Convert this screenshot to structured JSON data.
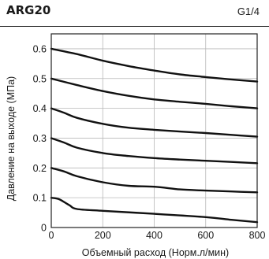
{
  "header": {
    "model": "ARG20",
    "port": "G1/4"
  },
  "chart_data": {
    "type": "line",
    "xlabel": "Объемный расход (Норм.л/мин)",
    "ylabel": "Давление на выходе (МПа)",
    "xlim": [
      0,
      800
    ],
    "ylim": [
      0,
      0.65
    ],
    "x_ticks": [
      "0",
      "200",
      "400",
      "600",
      "800"
    ],
    "y_ticks": [
      "0",
      "0.1",
      "0.2",
      "0.3",
      "0.4",
      "0.5",
      "0.6"
    ],
    "grid": true,
    "series": [
      {
        "points": [
          [
            0,
            0.6
          ],
          [
            100,
            0.582
          ],
          [
            200,
            0.56
          ],
          [
            300,
            0.542
          ],
          [
            400,
            0.527
          ],
          [
            500,
            0.514
          ],
          [
            600,
            0.505
          ],
          [
            700,
            0.497
          ],
          [
            800,
            0.49
          ]
        ]
      },
      {
        "points": [
          [
            0,
            0.5
          ],
          [
            100,
            0.478
          ],
          [
            200,
            0.458
          ],
          [
            300,
            0.442
          ],
          [
            400,
            0.43
          ],
          [
            500,
            0.422
          ],
          [
            600,
            0.415
          ],
          [
            700,
            0.407
          ],
          [
            800,
            0.4
          ]
        ]
      },
      {
        "points": [
          [
            0,
            0.4
          ],
          [
            50,
            0.385
          ],
          [
            100,
            0.368
          ],
          [
            200,
            0.348
          ],
          [
            300,
            0.335
          ],
          [
            400,
            0.328
          ],
          [
            500,
            0.322
          ],
          [
            600,
            0.317
          ],
          [
            700,
            0.311
          ],
          [
            800,
            0.305
          ]
        ]
      },
      {
        "points": [
          [
            0,
            0.3
          ],
          [
            50,
            0.285
          ],
          [
            100,
            0.268
          ],
          [
            200,
            0.25
          ],
          [
            300,
            0.24
          ],
          [
            400,
            0.233
          ],
          [
            500,
            0.228
          ],
          [
            600,
            0.224
          ],
          [
            700,
            0.22
          ],
          [
            800,
            0.216
          ]
        ]
      },
      {
        "points": [
          [
            0,
            0.2
          ],
          [
            50,
            0.188
          ],
          [
            100,
            0.172
          ],
          [
            200,
            0.152
          ],
          [
            300,
            0.14
          ],
          [
            400,
            0.137
          ],
          [
            500,
            0.128
          ],
          [
            600,
            0.124
          ],
          [
            700,
            0.121
          ],
          [
            800,
            0.118
          ]
        ]
      },
      {
        "points": [
          [
            0,
            0.1
          ],
          [
            30,
            0.095
          ],
          [
            70,
            0.075
          ],
          [
            100,
            0.062
          ],
          [
            200,
            0.056
          ],
          [
            400,
            0.046
          ],
          [
            600,
            0.035
          ],
          [
            700,
            0.026
          ],
          [
            800,
            0.018
          ]
        ]
      }
    ]
  }
}
